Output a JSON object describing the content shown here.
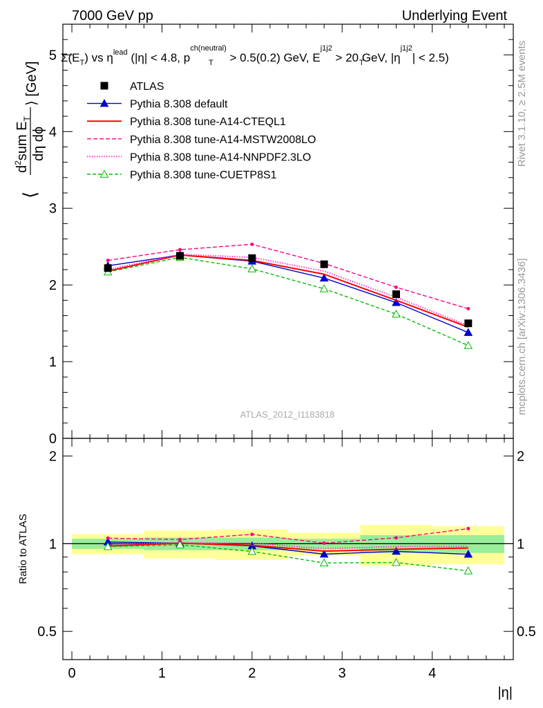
{
  "header": {
    "left": "7000 GeV pp",
    "right": "Underlying Event"
  },
  "title": "Σ(E_T) vs η^lead (|η| < 4.8, p_T^ch(neutral) > 0.5(0.2) GeV, E_T^j1j2 > 20 GeV, |η^j1j2| < 2.5)",
  "title_parts": {
    "p1": "Σ(E",
    "p1sub": "T",
    "p2": ") vs η",
    "p2sup": "lead",
    "p3": " (|η| < 4.8, p",
    "p3sup": "ch(neutral)",
    "p3sub": "T",
    "p4": " > 0.5(0.2) GeV, E",
    "p4sup": "j1j2",
    "p4sub": "T",
    "p5": " > 20 GeV, |η",
    "p5sup": "j1j2",
    "p6": "| < 2.5)"
  },
  "ylabel_main": {
    "prefix": "⟨",
    "num_a": "d",
    "num_sup": "2",
    "num_b": "sum E",
    "num_sub": "T",
    "den": "dη dϕ",
    "suffix": "⟩ [GeV]"
  },
  "ylabel_ratio": "Ratio to ATLAS",
  "xlabel": "|η|",
  "watermark": "ATLAS_2012_I1183818",
  "side_text_top": "Rivet 3.1.10, ≥ 2.5M events",
  "side_text_bottom": "mcplots.cern.ch [arXiv:1306.3436]",
  "chart_data": {
    "type": "line",
    "xlim": [
      -0.1,
      4.9
    ],
    "ylim_main": [
      0,
      5.4
    ],
    "ylim_ratio": [
      0.4,
      2.3
    ],
    "xticks": [
      "0",
      "1",
      "2",
      "3",
      "4"
    ],
    "yticks_main": [
      "0",
      "1",
      "2",
      "3",
      "4",
      "5"
    ],
    "yticks_ratio": [
      "0.5",
      "1",
      "2"
    ],
    "x": [
      0.4,
      1.2,
      2.0,
      2.8,
      3.6,
      4.4
    ],
    "bin_edges": [
      0.0,
      0.8,
      1.6,
      2.4,
      3.2,
      4.0,
      4.8
    ],
    "data": {
      "name": "ATLAS",
      "values": [
        2.22,
        2.38,
        2.35,
        2.27,
        1.88,
        1.5
      ],
      "ratio_band_outer": [
        [
          0.92,
          1.08
        ],
        [
          0.89,
          1.11
        ],
        [
          0.88,
          1.12
        ],
        [
          0.91,
          1.09
        ],
        [
          0.84,
          1.16
        ],
        [
          0.85,
          1.15
        ]
      ],
      "ratio_band_inner": [
        [
          0.96,
          1.04
        ],
        [
          0.95,
          1.05
        ],
        [
          0.95,
          1.05
        ],
        [
          0.96,
          1.04
        ],
        [
          0.93,
          1.07
        ],
        [
          0.93,
          1.07
        ]
      ]
    },
    "series": [
      {
        "name": "Pythia 8.308 default",
        "color": "#0000cc",
        "dash": "",
        "marker": "triangle",
        "values": [
          2.25,
          2.39,
          2.31,
          2.09,
          1.77,
          1.38
        ]
      },
      {
        "name": "Pythia 8.308 tune-A14-CTEQL1",
        "color": "#ff0000",
        "dash": "",
        "marker": "none",
        "values": [
          2.18,
          2.39,
          2.32,
          2.14,
          1.8,
          1.45
        ]
      },
      {
        "name": "Pythia 8.308 tune-A14-MSTW2008LO",
        "color": "#ff0080",
        "dash": "6,3",
        "marker": "dot",
        "values": [
          2.32,
          2.46,
          2.53,
          2.28,
          1.97,
          1.69
        ]
      },
      {
        "name": "Pythia 8.308 tune-A14-NNPDF2.3LO",
        "color": "#ff33cc",
        "dash": "1.5,2",
        "marker": "none",
        "values": [
          2.2,
          2.4,
          2.36,
          2.18,
          1.84,
          1.47
        ]
      },
      {
        "name": "Pythia 8.308 tune-CUETP8S1",
        "color": "#00bb00",
        "dash": "5,3",
        "marker": "open-triangle",
        "values": [
          2.17,
          2.36,
          2.21,
          1.95,
          1.62,
          1.21
        ]
      }
    ],
    "legend_placement": "top-left",
    "grid": false
  }
}
